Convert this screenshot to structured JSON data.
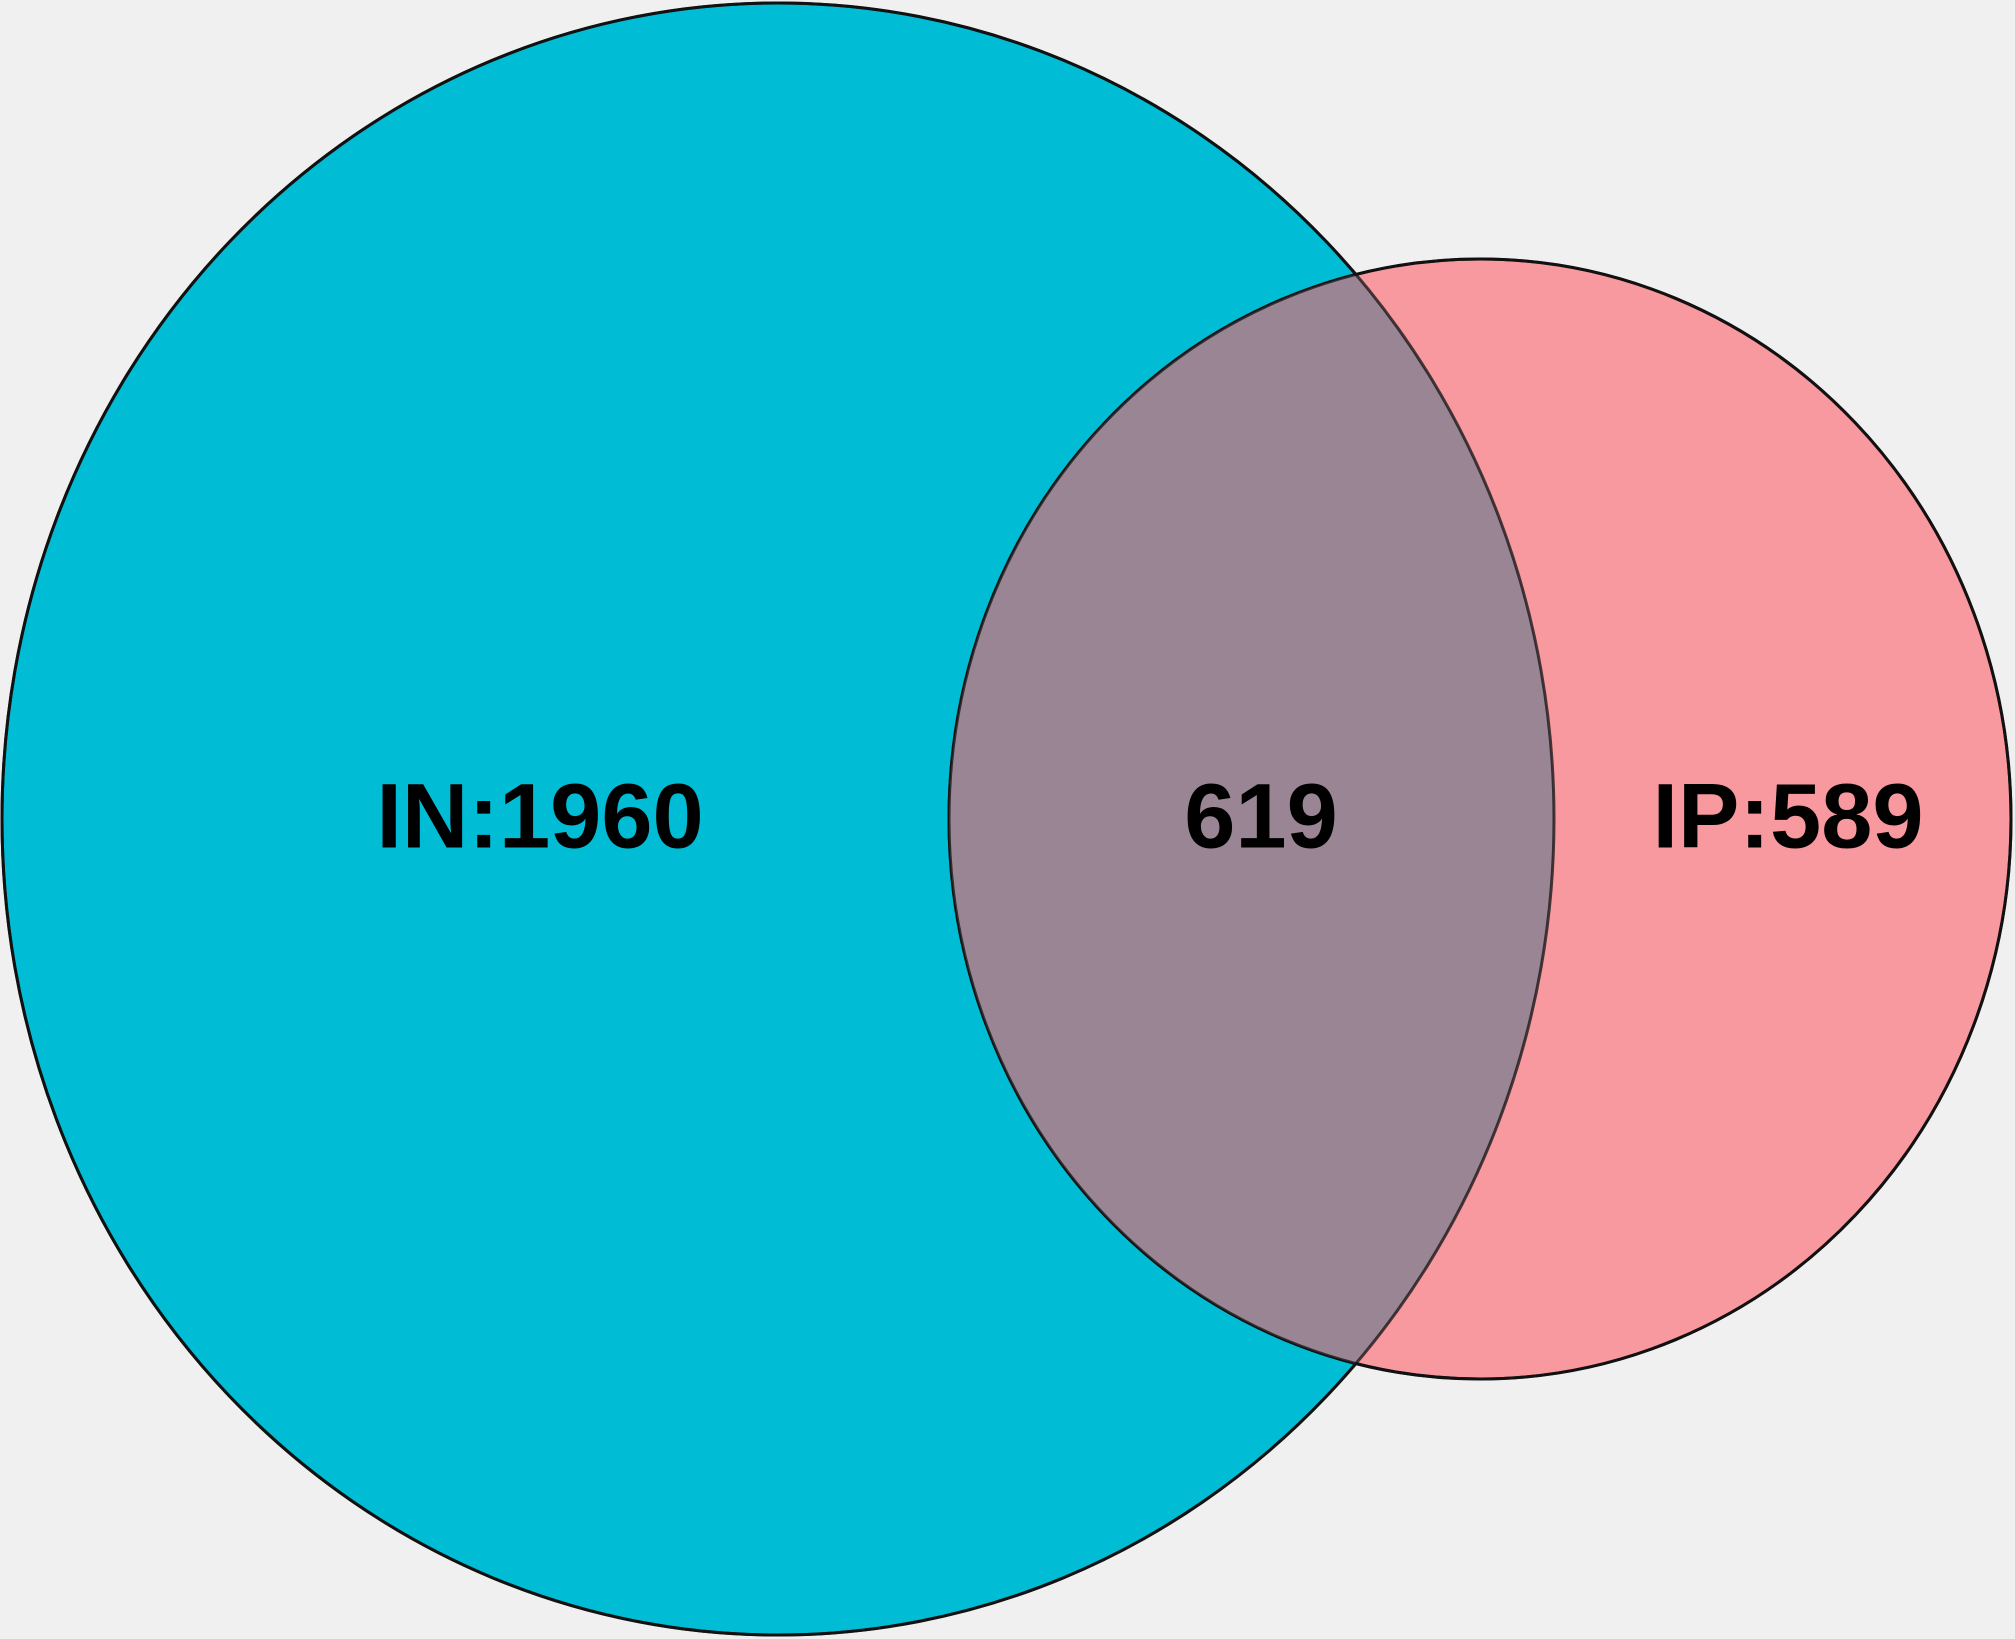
{
  "diagram": {
    "type": "venn",
    "sets": [
      {
        "id": "in",
        "label": "IN:1960",
        "name": "IN",
        "count": 1960,
        "color": "#00bcd5"
      },
      {
        "id": "ip",
        "label": "IP:589",
        "name": "IP",
        "count": 589,
        "color": "#f8989f"
      }
    ],
    "overlap": {
      "label": "619",
      "count": 619,
      "color": "#998593"
    },
    "background_color": "#f0f0f0",
    "outline_color": "#111111"
  }
}
